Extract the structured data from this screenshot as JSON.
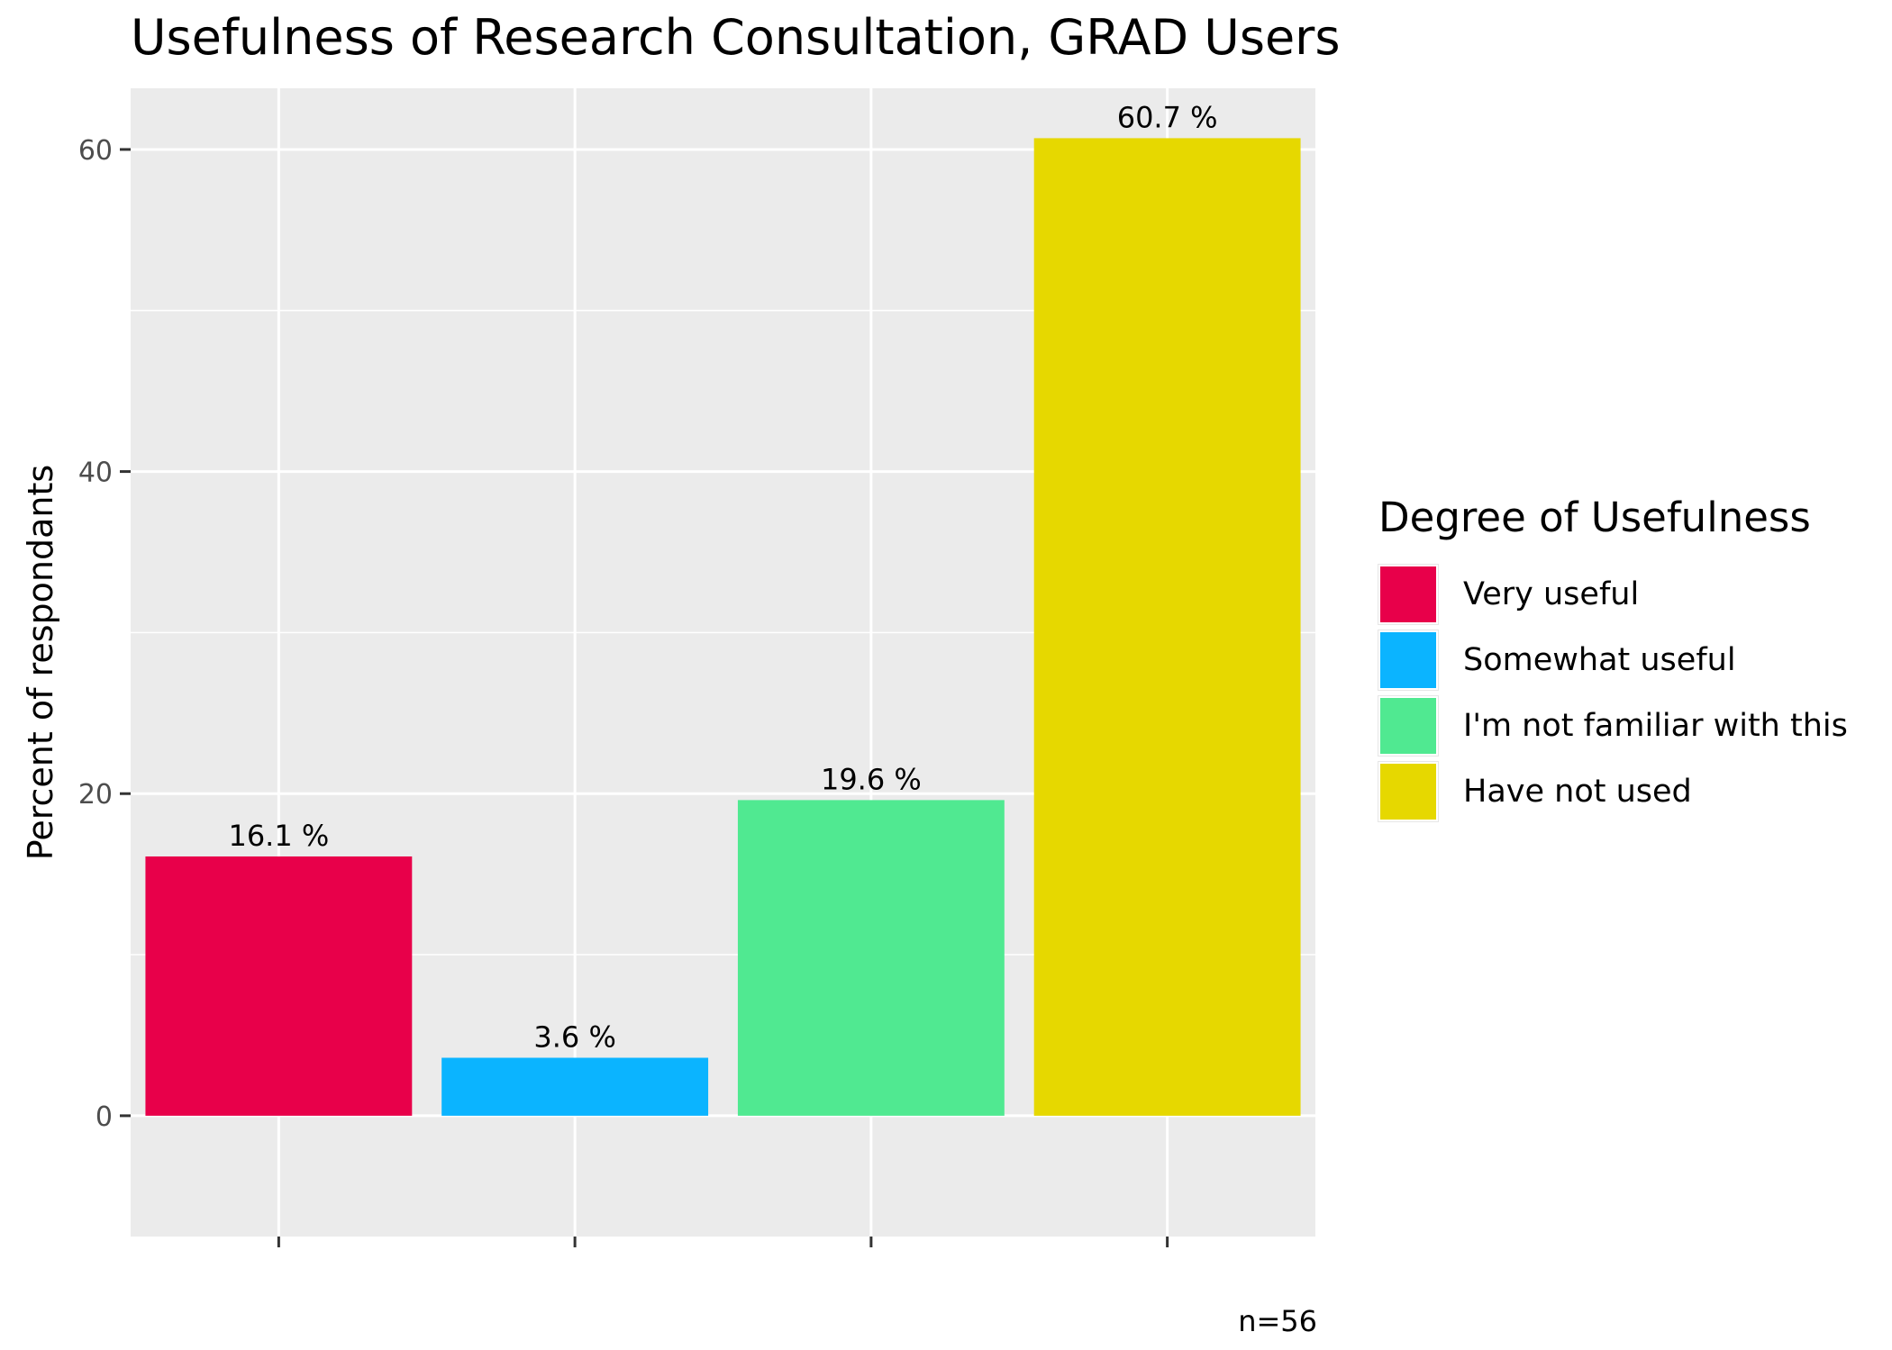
{
  "chart_data": {
    "type": "bar",
    "title": "Usefulness of Research Consultation,  GRAD Users",
    "xlabel": "",
    "ylabel": "Percent of respondants",
    "ylim": [
      -7.5,
      63.8
    ],
    "yticks": [
      0,
      20,
      40,
      60
    ],
    "grid": true,
    "legend_title": "Degree of Usefulness",
    "legend_position": "right",
    "caption": "n=56",
    "categories": [
      "Very useful",
      "Somewhat useful",
      "I'm not familiar with this",
      "Have not used"
    ],
    "values": [
      16.1,
      3.6,
      19.6,
      60.7
    ],
    "data_labels": [
      "16.1 %",
      "3.6 %",
      "19.6 %",
      "60.7 %"
    ],
    "colors": [
      "#e8004a",
      "#0bb4ff",
      "#50e991",
      "#e6d800"
    ],
    "panel_color": "#ebebeb",
    "grid_color": "#ffffff"
  }
}
